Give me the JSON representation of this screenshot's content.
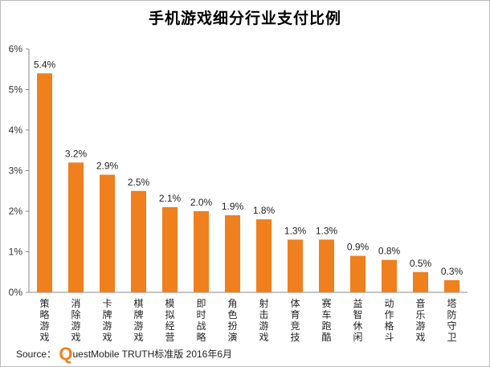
{
  "chart_data": {
    "type": "bar",
    "title": "手机游戏细分行业支付比例",
    "categories": [
      "策略游戏",
      "消除游戏",
      "卡牌游戏",
      "棋牌游戏",
      "模拟经营",
      "即时战略",
      "角色扮演",
      "射击游戏",
      "体育竞技",
      "赛车跑酷",
      "益智休闲",
      "动作格斗",
      "音乐游戏",
      "塔防守卫"
    ],
    "values": [
      5.4,
      3.2,
      2.9,
      2.5,
      2.1,
      2.0,
      1.9,
      1.8,
      1.3,
      1.3,
      0.9,
      0.8,
      0.5,
      0.3
    ],
    "value_labels": [
      "5.4%",
      "3.2%",
      "2.9%",
      "2.5%",
      "2.1%",
      "2.0%",
      "1.9%",
      "1.8%",
      "1.3%",
      "1.3%",
      "0.9%",
      "0.8%",
      "0.5%",
      "0.3%"
    ],
    "y_ticks": [
      "0%",
      "1%",
      "2%",
      "3%",
      "4%",
      "5%",
      "6%"
    ],
    "ylim": [
      0,
      6
    ],
    "grid": false,
    "bar_color": "#f07f1e"
  },
  "source": {
    "prefix": "Source：",
    "q": "Q",
    "rest": "uestMobile TRUTH标准版 2016年6月"
  }
}
